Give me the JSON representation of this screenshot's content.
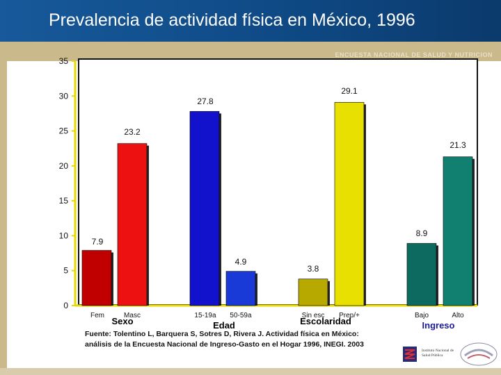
{
  "header": {
    "title": "Prevalencia de actividad física en México, 1996",
    "banner_text": "ENCUESTA NACIONAL DE SALUD Y NUTRICION"
  },
  "chart_data": {
    "type": "bar",
    "title": "Prevalencia de actividad física en México, 1996",
    "xlabel": "",
    "ylabel": "",
    "ylim": [
      0,
      35
    ],
    "yticks": [
      0,
      5,
      10,
      15,
      20,
      25,
      30,
      35
    ],
    "grid": false,
    "bars": [
      {
        "category": "Fem",
        "value": 7.9,
        "value_label": "7.9",
        "group": "Sexo",
        "color": "#c00000"
      },
      {
        "category": "Masc",
        "value": 23.2,
        "value_label": "23.2",
        "group": "Sexo",
        "color": "#ee1111"
      },
      {
        "category": "15-19a",
        "value": 27.8,
        "value_label": "27.8",
        "group": "Edad",
        "color": "#1212cc"
      },
      {
        "category": "50-59a",
        "value": 4.9,
        "value_label": "4.9",
        "group": "Edad",
        "color": "#1a3ad8"
      },
      {
        "category": "Sin esc",
        "value": 3.8,
        "value_label": "3.8",
        "group": "Escolaridad",
        "color": "#b8a900"
      },
      {
        "category": "Prep/+",
        "value": 29.1,
        "value_label": "29.1",
        "group": "Escolaridad",
        "color": "#e8e000"
      },
      {
        "category": "Bajo",
        "value": 8.9,
        "value_label": "8.9",
        "group": "Ingreso",
        "color": "#0d6a60"
      },
      {
        "category": "Alto",
        "value": 21.3,
        "value_label": "21.3",
        "group": "Ingreso",
        "color": "#118070"
      }
    ],
    "groups": [
      {
        "name": "Sexo",
        "color": "#000000"
      },
      {
        "name": "Edad",
        "color": "#000000"
      },
      {
        "name": "Escolaridad",
        "color": "#000000"
      },
      {
        "name": "Ingreso",
        "color": "#1a1a99"
      }
    ]
  },
  "footer": {
    "source_line1": "Fuente: Tolentino L, Barquera S, Sotres D, Rivera J. Actividad física en México:",
    "source_line2": "análisis de la Encuesta Nacional de Ingreso-Gasto en el Hogar 1996, INEGI. 2003",
    "logo_text": "Instituto Nacional de Salud Pública"
  }
}
